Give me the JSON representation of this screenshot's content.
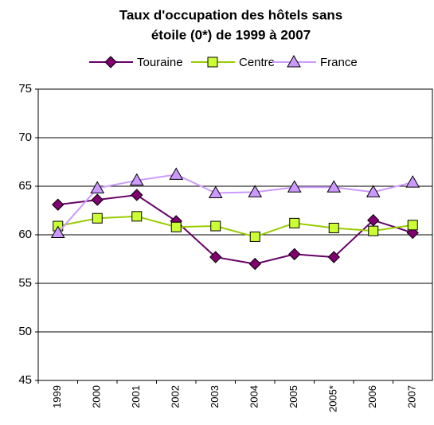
{
  "chart_data": {
    "type": "line",
    "title": "Taux d'occupation des hôtels sans",
    "subtitle": "étoile (0*) de 1999 à 2007",
    "categories": [
      "1999",
      "2000",
      "2001",
      "2002",
      "2003",
      "2004",
      "2005",
      "2005*",
      "2006",
      "2007"
    ],
    "series": [
      {
        "name": "Touraine",
        "color": "#660066",
        "marker": "diamond",
        "marker_color": "#800070",
        "values": [
          63.1,
          63.6,
          64.1,
          61.4,
          57.7,
          57.0,
          58.0,
          57.7,
          61.5,
          60.2
        ]
      },
      {
        "name": "Centre",
        "color": "#99cc00",
        "marker": "square",
        "marker_color": "#ccff33",
        "values": [
          60.9,
          61.7,
          61.9,
          60.8,
          60.9,
          59.8,
          61.2,
          60.7,
          60.4,
          61.0
        ]
      },
      {
        "name": "France",
        "color": "#cc99ff",
        "marker": "triangle",
        "marker_color": "#cc99ff",
        "values": [
          60.2,
          64.8,
          65.6,
          66.2,
          64.3,
          64.4,
          64.9,
          64.9,
          64.4,
          65.4
        ]
      }
    ],
    "ylim": [
      45,
      75
    ],
    "yticks": [
      45,
      50,
      55,
      60,
      65,
      70,
      75
    ],
    "grid": true,
    "legend": "top"
  }
}
